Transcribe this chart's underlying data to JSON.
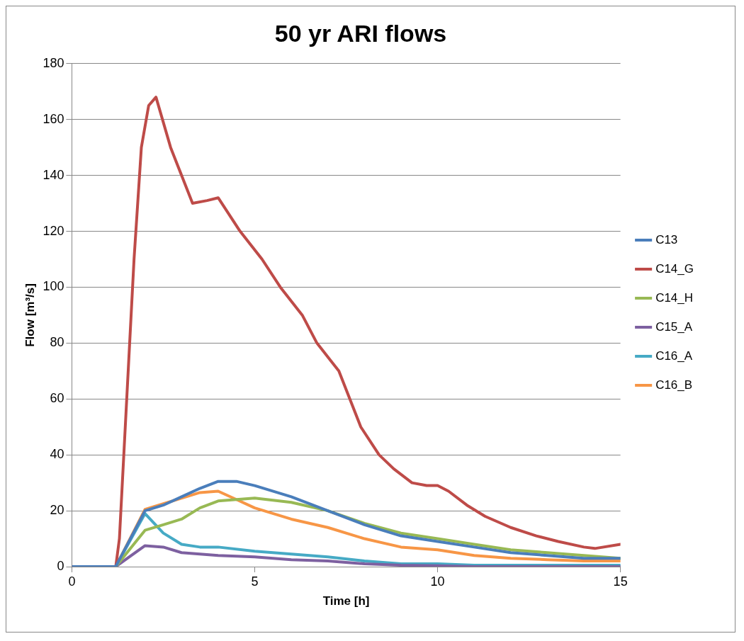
{
  "chart_data": {
    "type": "line",
    "title": "50 yr ARI flows",
    "xlabel": "Time [h]",
    "ylabel": "Flow [m³/s]",
    "xlim": [
      0,
      15
    ],
    "xticks": [
      0,
      5,
      10,
      15
    ],
    "ylim": [
      0,
      180
    ],
    "yticks": [
      0,
      20,
      40,
      60,
      80,
      100,
      120,
      140,
      160,
      180
    ],
    "grid": "y",
    "legend": "right",
    "marker": "none",
    "line_style": "solid",
    "series": [
      {
        "name": "C13",
        "color": "#4a7ebb",
        "x": [
          0,
          1.2,
          2,
          2.5,
          3,
          3.5,
          4,
          4.5,
          5,
          6,
          7,
          8,
          9,
          10,
          11,
          12,
          13,
          14,
          15
        ],
        "values": [
          0,
          0,
          20,
          22,
          25,
          28,
          30.5,
          30.5,
          29,
          25,
          20,
          15,
          11,
          9,
          7,
          5,
          4,
          3,
          3
        ]
      },
      {
        "name": "C14_G",
        "color": "#be4b48",
        "x": [
          0,
          1.2,
          1.3,
          1.5,
          1.7,
          1.9,
          2.1,
          2.3,
          2.7,
          3.3,
          3.7,
          4,
          4.6,
          5.2,
          5.7,
          6.3,
          6.7,
          7.3,
          7.6,
          7.9,
          8.4,
          8.8,
          9.3,
          9.7,
          10,
          10.3,
          10.8,
          11.3,
          12,
          12.7,
          13.3,
          14,
          14.3,
          15
        ],
        "values": [
          0,
          0,
          10,
          60,
          110,
          150,
          165,
          168,
          150,
          130,
          131,
          132,
          120,
          110,
          100,
          90,
          80,
          70,
          60,
          50,
          40,
          35,
          30,
          29,
          29,
          27,
          22,
          18,
          14,
          11,
          9,
          7,
          6.5,
          8
        ]
      },
      {
        "name": "C14_H",
        "color": "#98b954",
        "x": [
          0,
          1.2,
          2,
          2.5,
          3,
          3.5,
          4,
          5,
          6,
          7,
          8,
          9,
          10,
          11,
          12,
          13,
          14,
          15
        ],
        "values": [
          0,
          0,
          13,
          15,
          17,
          21,
          23.5,
          24.5,
          23,
          20,
          15.5,
          12,
          10,
          8,
          6,
          5,
          4,
          3
        ]
      },
      {
        "name": "C15_A",
        "color": "#7d60a0",
        "x": [
          0,
          1.2,
          2,
          2.5,
          3,
          3.5,
          4,
          5,
          6,
          7,
          8,
          9,
          10,
          11,
          15
        ],
        "values": [
          0,
          0,
          7.5,
          7,
          5,
          4.5,
          4,
          3.5,
          2.5,
          2,
          1,
          0.5,
          0.3,
          0,
          0
        ]
      },
      {
        "name": "C16_A",
        "color": "#46aac5",
        "x": [
          0,
          1.2,
          2,
          2.5,
          3,
          3.5,
          4,
          5,
          6,
          7,
          8,
          9,
          10,
          11,
          12,
          15
        ],
        "values": [
          0,
          0,
          19,
          12,
          8,
          7,
          7,
          5.5,
          4.5,
          3.5,
          2,
          1,
          1,
          0.5,
          0.5,
          0.5
        ]
      },
      {
        "name": "C16_B",
        "color": "#f79646",
        "x": [
          0,
          1.2,
          2,
          2.5,
          3,
          3.5,
          4,
          4.5,
          5,
          6,
          7,
          8,
          9,
          10,
          11,
          12,
          13,
          14,
          15
        ],
        "values": [
          0,
          0,
          20.5,
          22.5,
          24.5,
          26.5,
          27,
          24,
          21,
          17,
          14,
          10,
          7,
          6,
          4,
          3,
          2.5,
          2,
          2
        ]
      }
    ]
  }
}
